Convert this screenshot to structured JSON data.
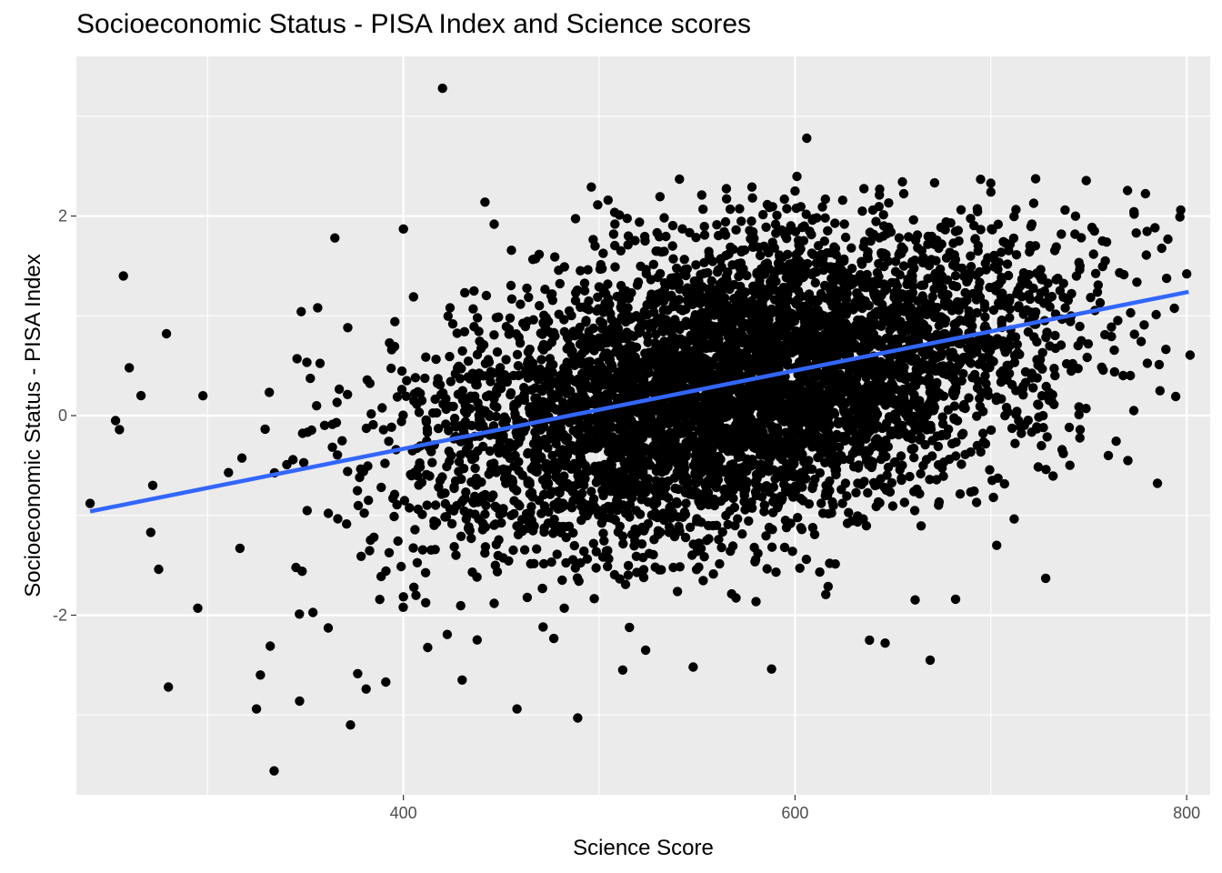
{
  "chart_data": {
    "type": "scatter",
    "title": "Socioeconomic Status - PISA Index and Science scores",
    "xlabel": "Science Score",
    "ylabel": "Socioeconomic Status - PISA Index",
    "xlim": [
      233,
      812
    ],
    "ylim": [
      -3.8,
      3.6
    ],
    "x_ticks": [
      400,
      600,
      800
    ],
    "x_tick_labels": [
      "400",
      "600",
      "800"
    ],
    "y_ticks": [
      -2,
      0,
      2
    ],
    "y_tick_labels": [
      "-2",
      "0",
      "2"
    ],
    "grid": true,
    "legend": "none",
    "colors": {
      "panel_background": "#ebebeb",
      "grid_line": "#ffffff",
      "point": "#000000",
      "trend_line": "#3366ff"
    },
    "cloud": {
      "n_points": 5200,
      "x_mean": 570,
      "x_sd": 82,
      "x_range": [
        250,
        802
      ],
      "y_intercept_at_x_250": -0.96,
      "y_slope_per_point": 0.0039,
      "residual_sd": 0.72
    },
    "outliers": [
      {
        "x": 420,
        "y": 3.28
      },
      {
        "x": 606,
        "y": 2.78
      },
      {
        "x": 541,
        "y": 2.37
      },
      {
        "x": 578,
        "y": 2.29
      },
      {
        "x": 496,
        "y": 2.29
      },
      {
        "x": 700,
        "y": 2.24
      },
      {
        "x": 400,
        "y": 1.87
      },
      {
        "x": 365,
        "y": 1.78
      },
      {
        "x": 757,
        "y": 1.75
      },
      {
        "x": 800,
        "y": 1.42
      },
      {
        "x": 257,
        "y": 1.4
      },
      {
        "x": 279,
        "y": 0.82
      },
      {
        "x": 260,
        "y": 0.48
      },
      {
        "x": 266,
        "y": 0.2
      },
      {
        "x": 253,
        "y": -0.05
      },
      {
        "x": 255,
        "y": -0.14
      },
      {
        "x": 773,
        "y": 0.05
      },
      {
        "x": 760,
        "y": -0.4
      },
      {
        "x": 240,
        "y": -0.88
      },
      {
        "x": 272,
        "y": -0.7
      },
      {
        "x": 271,
        "y": -1.17
      },
      {
        "x": 275,
        "y": -1.54
      },
      {
        "x": 295,
        "y": -1.93
      },
      {
        "x": 280,
        "y": -2.72
      },
      {
        "x": 327,
        "y": -2.6
      },
      {
        "x": 332,
        "y": -2.31
      },
      {
        "x": 325,
        "y": -2.94
      },
      {
        "x": 347,
        "y": -2.86
      },
      {
        "x": 373,
        "y": -3.1
      },
      {
        "x": 334,
        "y": -3.56
      },
      {
        "x": 391,
        "y": -2.67
      },
      {
        "x": 381,
        "y": -2.74
      },
      {
        "x": 458,
        "y": -2.94
      },
      {
        "x": 489,
        "y": -3.03
      },
      {
        "x": 430,
        "y": -2.65
      },
      {
        "x": 512,
        "y": -2.55
      },
      {
        "x": 548,
        "y": -2.52
      },
      {
        "x": 588,
        "y": -2.54
      },
      {
        "x": 669,
        "y": -2.45
      },
      {
        "x": 638,
        "y": -2.25
      },
      {
        "x": 646,
        "y": -2.28
      },
      {
        "x": 682,
        "y": -1.84
      },
      {
        "x": 728,
        "y": -1.63
      },
      {
        "x": 703,
        "y": -1.3
      },
      {
        "x": 737,
        "y": -0.38
      },
      {
        "x": 770,
        "y": -0.45
      },
      {
        "x": 745,
        "y": 0.01
      }
    ],
    "trend_line": {
      "x": [
        240,
        801
      ],
      "y": [
        -0.96,
        1.24
      ]
    }
  }
}
